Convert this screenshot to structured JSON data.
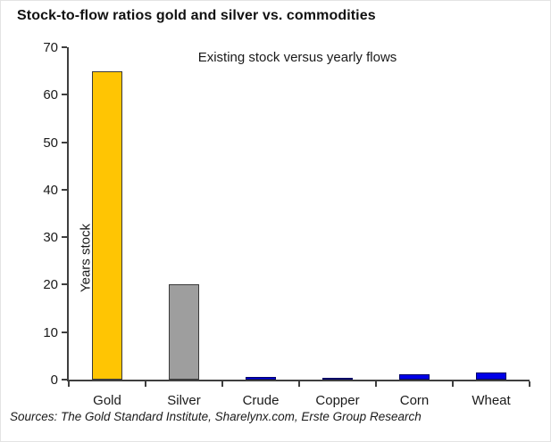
{
  "title": "Stock-to-flow ratios gold and silver vs. commodities",
  "source": "Sources: The Gold Standard Institute, Sharelynx.com, Erste Group Research",
  "colors": {
    "gold_fill": "#FFC503",
    "silver_fill": "#9E9E9E",
    "blue_fill": "#0000E8",
    "metal_border": "#3a3a3a",
    "blue_border": "#000066",
    "axis": "#3f3f3f"
  },
  "chart_data": {
    "type": "bar",
    "title": "Stock-to-flow ratios gold and silver vs. commodities",
    "subtitle": "Existing stock versus yearly flows",
    "categories": [
      "Gold",
      "Silver",
      "Crude",
      "Copper",
      "Corn",
      "Wheat"
    ],
    "values": [
      65,
      20,
      0.5,
      0.3,
      1.2,
      1.5
    ],
    "bar_colors": [
      "#FFC503",
      "#9E9E9E",
      "#0000E8",
      "#0000E8",
      "#0000E8",
      "#0000E8"
    ],
    "bar_border_colors": [
      "#3a3a3a",
      "#3a3a3a",
      "#000066",
      "#000066",
      "#000066",
      "#000066"
    ],
    "xlabel": "",
    "ylabel": "Years stock",
    "ylim": [
      0,
      70
    ],
    "yticks": [
      0,
      10,
      20,
      30,
      40,
      50,
      60,
      70
    ],
    "grid": false,
    "legend": "none"
  }
}
